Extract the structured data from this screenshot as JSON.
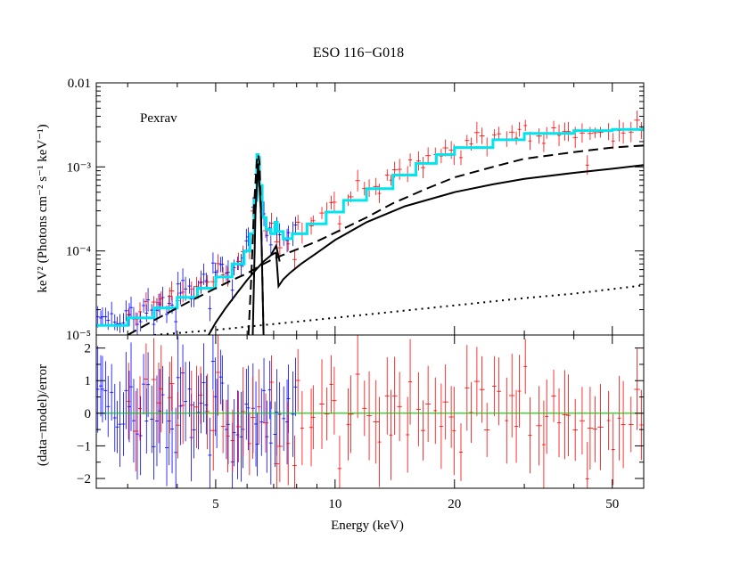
{
  "colors": {
    "axis": "#000000",
    "model_total": "#00e5ee",
    "data_set_a": "#ff0000",
    "data_set_b": "#0000ff",
    "zero_line": "#00cc00"
  },
  "chart_data": [
    {
      "type": "line",
      "panel": "top",
      "title": "ESO 116−G018",
      "annotation": "Pexrav",
      "xlabel": "",
      "ylabel": "keV² (Photons cm⁻² s⁻¹ keV⁻¹)",
      "xscale": "log",
      "yscale": "log",
      "xlim": [
        2.5,
        60
      ],
      "ylim": [
        1e-05,
        0.01
      ],
      "ytick_labels": [
        {
          "value": 1e-05,
          "text": "10⁻⁵"
        },
        {
          "value": 0.0001,
          "text": "10⁻⁴"
        },
        {
          "value": 0.001,
          "text": "10⁻³"
        },
        {
          "value": 0.01,
          "text": "0.01"
        }
      ],
      "series": [
        {
          "style": "cyan-step",
          "x": [
            2.5,
            3.0,
            3.5,
            4.0,
            4.5,
            5.0,
            5.5,
            5.9,
            6.1,
            6.25,
            6.35,
            6.4,
            6.45,
            6.55,
            6.7,
            6.9,
            7.05,
            7.15,
            7.4,
            7.8,
            8.5,
            9.5,
            10.5,
            12,
            14,
            16,
            18,
            20,
            25,
            30,
            40,
            50,
            60
          ],
          "y": [
            1.3e-05,
            1.6e-05,
            2.1e-05,
            2.8e-05,
            3.6e-05,
            4.9e-05,
            7e-05,
            0.0001,
            0.00016,
            0.0004,
            0.0014,
            0.0013,
            0.0006,
            0.00025,
            0.00018,
            0.00016,
            0.00022,
            0.00017,
            0.00014,
            0.00016,
            0.00021,
            0.00029,
            0.0004,
            0.00055,
            0.0008,
            0.0011,
            0.0014,
            0.0017,
            0.0021,
            0.0025,
            0.0027,
            0.0028,
            0.003
          ]
        },
        {
          "style": "dash",
          "x": [
            3.0,
            3.5,
            4.0,
            4.5,
            5.0,
            5.5,
            6.0,
            6.3,
            6.45,
            6.6,
            6.9,
            7.1,
            7.4,
            8.0,
            9.0,
            10,
            12,
            14,
            17,
            20,
            25,
            30,
            40,
            50,
            60
          ],
          "y": [
            1e-05,
            1.5e-05,
            2.1e-05,
            2.8e-05,
            3.6e-05,
            4.5e-05,
            5.4e-05,
            6.2e-05,
            6.6e-05,
            7e-05,
            7.8e-05,
            8.3e-05,
            9e-05,
            0.000104,
            0.00013,
            0.000165,
            0.00025,
            0.00037,
            0.00055,
            0.00075,
            0.001,
            0.00125,
            0.0015,
            0.0017,
            0.0018
          ]
        },
        {
          "style": "dash",
          "x": [
            6.05,
            6.15,
            6.25,
            6.35,
            6.4,
            6.45,
            6.5,
            6.55,
            6.6
          ],
          "y": [
            1e-05,
            5e-05,
            0.00035,
            0.0012,
            0.0014,
            0.0011,
            0.00035,
            6e-05,
            1e-05
          ]
        },
        {
          "style": "solid",
          "x": [
            4.8,
            5.0,
            5.3,
            5.7,
            6.0,
            6.3,
            6.6,
            6.9,
            7.1
          ],
          "y": [
            1e-05,
            1.4e-05,
            2.1e-05,
            3.3e-05,
            4.5e-05,
            5.9e-05,
            7.5e-05,
            8.9e-05,
            9.6e-05
          ]
        },
        {
          "style": "solid",
          "x": [
            7.1,
            7.2,
            7.4,
            7.7,
            8.2,
            9.0,
            10,
            12,
            15,
            20,
            25,
            30,
            40,
            50,
            60
          ],
          "y": [
            9.6e-05,
            3.8e-05,
            4.6e-05,
            5.5e-05,
            7e-05,
            9.5e-05,
            0.000135,
            0.00022,
            0.00034,
            0.0005,
            0.00062,
            0.00072,
            0.00085,
            0.00095,
            0.00105
          ]
        },
        {
          "style": "solid",
          "x": [
            6.2,
            6.3,
            6.4,
            6.5,
            6.6
          ],
          "y": [
            1e-05,
            0.0003,
            0.0011,
            0.0003,
            1e-05
          ]
        },
        {
          "style": "solid",
          "x": [
            6.9,
            7.1,
            7.25
          ],
          "y": [
            9e-05,
            0.000115,
            7.5e-05
          ]
        },
        {
          "style": "dot",
          "x": [
            3.5,
            5,
            7,
            10,
            15,
            20,
            30,
            40,
            60
          ],
          "y": [
            1e-05,
            1.15e-05,
            1.35e-05,
            1.6e-05,
            1.95e-05,
            2.25e-05,
            2.75e-05,
            3.1e-05,
            3.9e-05
          ]
        }
      ]
    },
    {
      "type": "scatter",
      "panel": "bottom",
      "xlabel": "Energy (keV)",
      "ylabel": "(data−model)/error",
      "xscale": "log",
      "xlim": [
        2.5,
        60
      ],
      "ylim": [
        -2.3,
        2.4
      ],
      "xtick_labels": [
        {
          "value": 5,
          "text": "5"
        },
        {
          "value": 10,
          "text": "10"
        },
        {
          "value": 20,
          "text": "20"
        },
        {
          "value": 50,
          "text": "50"
        }
      ],
      "ytick_labels": [
        {
          "value": -2,
          "text": "−2"
        },
        {
          "value": -1,
          "text": "−1"
        },
        {
          "value": 0,
          "text": "0"
        },
        {
          "value": 1,
          "text": "1"
        },
        {
          "value": 2,
          "text": "2"
        }
      ],
      "zero_line": 0
    }
  ]
}
